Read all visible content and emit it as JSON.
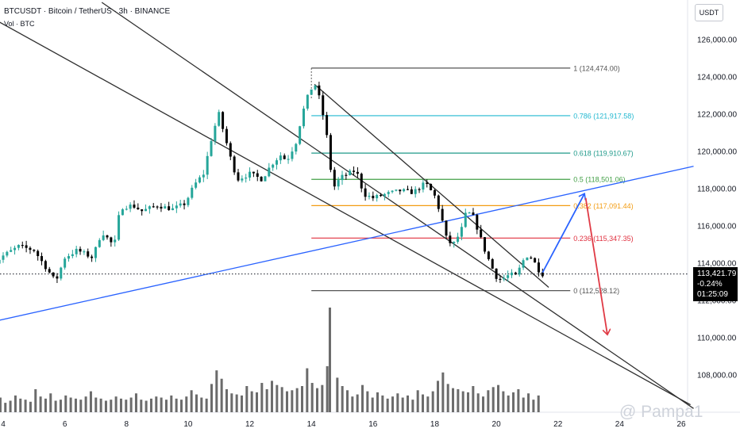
{
  "header": {
    "title": "BTCUSDT · Bitcoin / TetherUS · 3h · BINANCE",
    "subtitle": "Vol · BTC"
  },
  "currency_button": "USDT",
  "current_price": {
    "price": "113,421.79",
    "change": "-0.24%",
    "countdown": "01:25:09"
  },
  "watermark": "@ Pampa1",
  "colors": {
    "up_candle": "#26a69a",
    "down_candle": "#000000",
    "volume_bar": "#6b6b6b",
    "channel_line": "#2f2f2f",
    "support_line": "#2962ff",
    "arrow_up": "#2962ff",
    "arrow_down": "#e03a45"
  },
  "chart_data": {
    "type": "candlestick",
    "symbol": "BTCUSDT",
    "interval": "3h",
    "y_axis": {
      "range": [
        106000,
        128000
      ],
      "ticks": [
        "108,000.00",
        "110,000.00",
        "112,000.00",
        "114,000.00",
        "116,000.00",
        "118,000.00",
        "120,000.00",
        "122,000.00",
        "124,000.00",
        "126,000.00"
      ]
    },
    "x_axis": {
      "range": [
        3.5,
        26.5
      ],
      "ticks": [
        {
          "day": 4,
          "label": "4"
        },
        {
          "day": 6,
          "label": "6"
        },
        {
          "day": 8,
          "label": "8"
        },
        {
          "day": 10,
          "label": "10"
        },
        {
          "day": 12,
          "label": "12"
        },
        {
          "day": 14,
          "label": "14"
        },
        {
          "day": 16,
          "label": "16"
        },
        {
          "day": 18,
          "label": "18"
        },
        {
          "day": 20,
          "label": "20"
        },
        {
          "day": 22,
          "label": "22"
        },
        {
          "day": 24,
          "label": "24"
        },
        {
          "day": 26,
          "label": "26"
        }
      ]
    },
    "price_path": [
      [
        3.5,
        113700
      ],
      [
        4.0,
        114400
      ],
      [
        4.5,
        114900
      ],
      [
        5.0,
        114700
      ],
      [
        5.5,
        113500
      ],
      [
        5.7,
        113000
      ],
      [
        6.0,
        114300
      ],
      [
        6.4,
        114700
      ],
      [
        6.9,
        114300
      ],
      [
        7.2,
        115700
      ],
      [
        7.6,
        114900
      ],
      [
        7.8,
        117000
      ],
      [
        8.2,
        117100
      ],
      [
        8.5,
        116800
      ],
      [
        9.0,
        117100
      ],
      [
        9.5,
        116900
      ],
      [
        9.9,
        117200
      ],
      [
        10.2,
        118200
      ],
      [
        10.5,
        118800
      ],
      [
        10.8,
        121000
      ],
      [
        11.0,
        122000
      ],
      [
        11.4,
        119500
      ],
      [
        11.6,
        118500
      ],
      [
        12.0,
        118800
      ],
      [
        12.4,
        118500
      ],
      [
        12.7,
        119300
      ],
      [
        13.0,
        119800
      ],
      [
        13.2,
        119500
      ],
      [
        13.5,
        120500
      ],
      [
        13.7,
        122000
      ],
      [
        13.95,
        123300
      ],
      [
        14.15,
        123600
      ],
      [
        14.35,
        122200
      ],
      [
        14.5,
        120800
      ],
      [
        14.7,
        118000
      ],
      [
        14.95,
        118600
      ],
      [
        15.2,
        118800
      ],
      [
        15.45,
        119000
      ],
      [
        15.7,
        117700
      ],
      [
        16.0,
        117500
      ],
      [
        16.4,
        117700
      ],
      [
        16.9,
        117900
      ],
      [
        17.3,
        117800
      ],
      [
        17.7,
        118300
      ],
      [
        18.0,
        117600
      ],
      [
        18.2,
        116600
      ],
      [
        18.4,
        115200
      ],
      [
        18.6,
        115000
      ],
      [
        18.85,
        115700
      ],
      [
        19.0,
        116600
      ],
      [
        19.2,
        116700
      ],
      [
        19.4,
        115800
      ],
      [
        19.6,
        114800
      ],
      [
        19.85,
        113800
      ],
      [
        20.05,
        113100
      ],
      [
        20.25,
        113200
      ],
      [
        20.45,
        113400
      ],
      [
        20.65,
        113300
      ],
      [
        20.85,
        114100
      ],
      [
        21.05,
        114500
      ],
      [
        21.25,
        114000
      ],
      [
        21.45,
        113420
      ]
    ],
    "volume": {
      "peak_bar_day": 14.6,
      "relative_values": [
        0.12,
        0.1,
        0.14,
        0.09,
        0.11,
        0.16,
        0.13,
        0.12,
        0.1,
        0.22,
        0.15,
        0.13,
        0.18,
        0.11,
        0.12,
        0.16,
        0.14,
        0.13,
        0.12,
        0.15,
        0.2,
        0.14,
        0.13,
        0.11,
        0.12,
        0.15,
        0.13,
        0.12,
        0.14,
        0.18,
        0.12,
        0.11,
        0.13,
        0.15,
        0.14,
        0.12,
        0.16,
        0.13,
        0.12,
        0.15,
        0.21,
        0.17,
        0.14,
        0.13,
        0.27,
        0.4,
        0.32,
        0.22,
        0.18,
        0.17,
        0.16,
        0.25,
        0.2,
        0.19,
        0.28,
        0.22,
        0.3,
        0.26,
        0.24,
        0.2,
        0.21,
        0.23,
        0.25,
        0.42,
        0.28,
        0.23,
        0.26,
        0.44,
        1.0,
        0.33,
        0.25,
        0.21,
        0.15,
        0.17,
        0.26,
        0.2,
        0.14,
        0.19,
        0.16,
        0.13,
        0.15,
        0.18,
        0.14,
        0.16,
        0.12,
        0.21,
        0.17,
        0.15,
        0.2,
        0.3,
        0.38,
        0.27,
        0.23,
        0.22,
        0.2,
        0.19,
        0.25,
        0.18,
        0.15,
        0.21,
        0.24,
        0.26,
        0.2,
        0.16,
        0.19,
        0.22,
        0.14,
        0.18,
        0.12,
        0.16
      ]
    },
    "fibonacci": {
      "x_start_day": 14.0,
      "x_end_day": 22.4,
      "levels": [
        {
          "ratio": "1",
          "price": 124474.0,
          "label": "1 (124,474.00)",
          "color": "#555555"
        },
        {
          "ratio": "0.786",
          "price": 121917.58,
          "label": "0.786 (121,917.58)",
          "color": "#22b8d0"
        },
        {
          "ratio": "0.618",
          "price": 119910.67,
          "label": "0.618 (119,910.67)",
          "color": "#1f9a8a"
        },
        {
          "ratio": "0.5",
          "price": 118501.06,
          "label": "0.5 (118,501.06)",
          "color": "#43a047"
        },
        {
          "ratio": "0.382",
          "price": 117091.44,
          "label": "0.382 (117,091.44)",
          "color": "#f39c12"
        },
        {
          "ratio": "0.236",
          "price": 115347.35,
          "label": "0.236 (115,347.35)",
          "color": "#e0303f"
        },
        {
          "ratio": "0",
          "price": 112528.12,
          "label": "0 (112,528.12)",
          "color": "#555555"
        }
      ]
    },
    "trendlines": [
      {
        "name": "upper-channel",
        "from": [
          7.2,
          128000
        ],
        "to": [
          26.4,
          106200
        ]
      },
      {
        "name": "lower-channel",
        "from": [
          3.6,
          127200
        ],
        "to": [
          26.3,
          106400
        ]
      },
      {
        "name": "wedge-upper",
        "from": [
          14.1,
          123600
        ],
        "to": [
          21.7,
          112700
        ]
      },
      {
        "name": "support-line",
        "from": [
          3.5,
          110800
        ],
        "to": [
          26.4,
          119200
        ]
      }
    ],
    "projections": [
      {
        "name": "up-arrow",
        "from": [
          21.5,
          113500
        ],
        "to": [
          22.85,
          117700
        ]
      },
      {
        "name": "down-arrow",
        "from": [
          22.9,
          117500
        ],
        "to": [
          23.6,
          110200
        ]
      }
    ],
    "current_price_value": 113421.79
  }
}
